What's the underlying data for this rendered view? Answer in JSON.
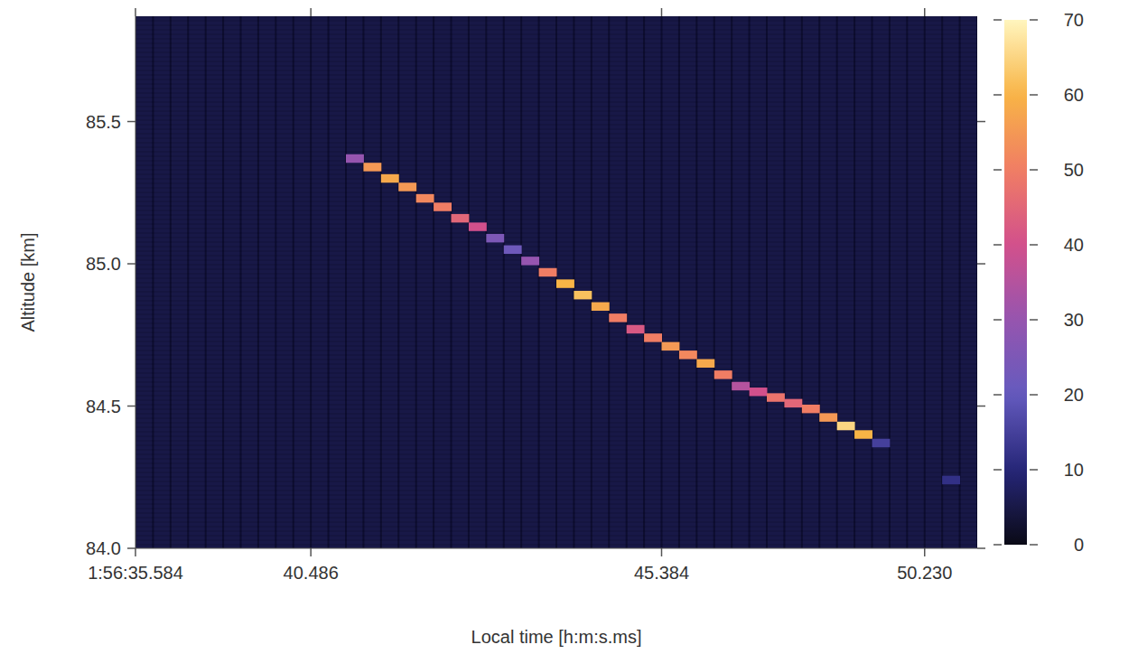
{
  "chart_data": {
    "type": "heatmap",
    "x_label": "Local time [h:m:s.ms]",
    "y_label": "Altitude [km]",
    "categories": [
      "1:56:35.584",
      null,
      null,
      null,
      null,
      null,
      null,
      null,
      null,
      null,
      "40.486",
      null,
      null,
      null,
      null,
      null,
      null,
      null,
      null,
      null,
      null,
      null,
      null,
      null,
      null,
      null,
      null,
      null,
      null,
      null,
      "45.384",
      null,
      null,
      null,
      null,
      null,
      null,
      null,
      null,
      null,
      null,
      null,
      null,
      null,
      null,
      "50.230",
      null,
      null
    ],
    "ylim": [
      84.0,
      85.87
    ],
    "yticks": [
      {
        "value": 84.0,
        "label": "84.0"
      },
      {
        "value": 84.5,
        "label": "84.5"
      },
      {
        "value": 85.0,
        "label": "85.0"
      },
      {
        "value": 85.5,
        "label": "85.5"
      }
    ],
    "cell_height": 0.03,
    "background_value": 5,
    "cells": [
      [
        12,
        85.37,
        30
      ],
      [
        13,
        85.34,
        55
      ],
      [
        14,
        85.3,
        58
      ],
      [
        15,
        85.27,
        55
      ],
      [
        16,
        85.23,
        52
      ],
      [
        17,
        85.2,
        50
      ],
      [
        18,
        85.16,
        45
      ],
      [
        19,
        85.13,
        40
      ],
      [
        20,
        85.09,
        25
      ],
      [
        21,
        85.05,
        22
      ],
      [
        22,
        85.01,
        30
      ],
      [
        23,
        84.97,
        50
      ],
      [
        24,
        84.93,
        60
      ],
      [
        25,
        84.89,
        62
      ],
      [
        26,
        84.85,
        58
      ],
      [
        27,
        84.81,
        50
      ],
      [
        28,
        84.77,
        42
      ],
      [
        29,
        84.74,
        50
      ],
      [
        30,
        84.71,
        55
      ],
      [
        31,
        84.68,
        52
      ],
      [
        32,
        84.65,
        58
      ],
      [
        33,
        84.61,
        50
      ],
      [
        34,
        84.57,
        35
      ],
      [
        35,
        84.55,
        40
      ],
      [
        36,
        84.53,
        48
      ],
      [
        37,
        84.51,
        45
      ],
      [
        38,
        84.49,
        50
      ],
      [
        39,
        84.46,
        55
      ],
      [
        40,
        84.43,
        65
      ],
      [
        41,
        84.4,
        60
      ],
      [
        42,
        84.37,
        15
      ],
      [
        46,
        84.24,
        12
      ]
    ],
    "colorbar_lim": [
      0,
      70
    ],
    "colorbar_ticks": [
      0,
      10,
      20,
      30,
      40,
      50,
      60,
      70
    ]
  }
}
